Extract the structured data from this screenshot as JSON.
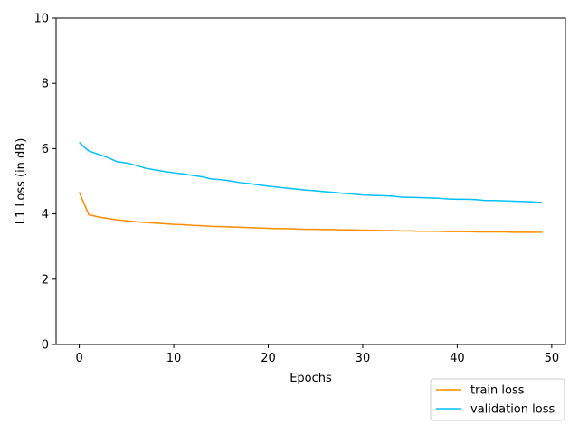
{
  "chart_data": {
    "type": "line",
    "xlabel": "Epochs",
    "ylabel": "L1 Loss (in dB)",
    "xlim": [
      -2.45,
      51.45
    ],
    "ylim": [
      0,
      10
    ],
    "xticks": [
      0,
      10,
      20,
      30,
      40,
      50
    ],
    "yticks": [
      0,
      2,
      4,
      6,
      8,
      10
    ],
    "grid": false,
    "legend_position": "below-right",
    "x": [
      0,
      1,
      2,
      3,
      4,
      5,
      6,
      7,
      8,
      9,
      10,
      11,
      12,
      13,
      14,
      15,
      16,
      17,
      18,
      19,
      20,
      21,
      22,
      23,
      24,
      25,
      26,
      27,
      28,
      29,
      30,
      31,
      32,
      33,
      34,
      35,
      36,
      37,
      38,
      39,
      40,
      41,
      42,
      43,
      44,
      45,
      46,
      47,
      48,
      49
    ],
    "series": [
      {
        "name": "train loss",
        "color": "#ff8c00",
        "values": [
          4.67,
          3.98,
          3.91,
          3.86,
          3.82,
          3.79,
          3.76,
          3.74,
          3.72,
          3.7,
          3.68,
          3.67,
          3.65,
          3.64,
          3.62,
          3.61,
          3.6,
          3.59,
          3.58,
          3.57,
          3.56,
          3.55,
          3.55,
          3.54,
          3.53,
          3.53,
          3.52,
          3.52,
          3.51,
          3.51,
          3.5,
          3.5,
          3.49,
          3.49,
          3.48,
          3.48,
          3.47,
          3.47,
          3.47,
          3.46,
          3.46,
          3.46,
          3.45,
          3.45,
          3.45,
          3.45,
          3.44,
          3.44,
          3.44,
          3.44
        ]
      },
      {
        "name": "validation loss",
        "color": "#00bfff",
        "values": [
          6.19,
          5.93,
          5.83,
          5.73,
          5.6,
          5.56,
          5.49,
          5.4,
          5.35,
          5.3,
          5.26,
          5.23,
          5.18,
          5.14,
          5.07,
          5.05,
          5.01,
          4.96,
          4.93,
          4.89,
          4.85,
          4.82,
          4.79,
          4.76,
          4.73,
          4.71,
          4.68,
          4.66,
          4.63,
          4.61,
          4.58,
          4.57,
          4.56,
          4.55,
          4.52,
          4.51,
          4.5,
          4.49,
          4.48,
          4.46,
          4.45,
          4.45,
          4.44,
          4.41,
          4.41,
          4.4,
          4.39,
          4.38,
          4.37,
          4.35
        ]
      }
    ]
  }
}
